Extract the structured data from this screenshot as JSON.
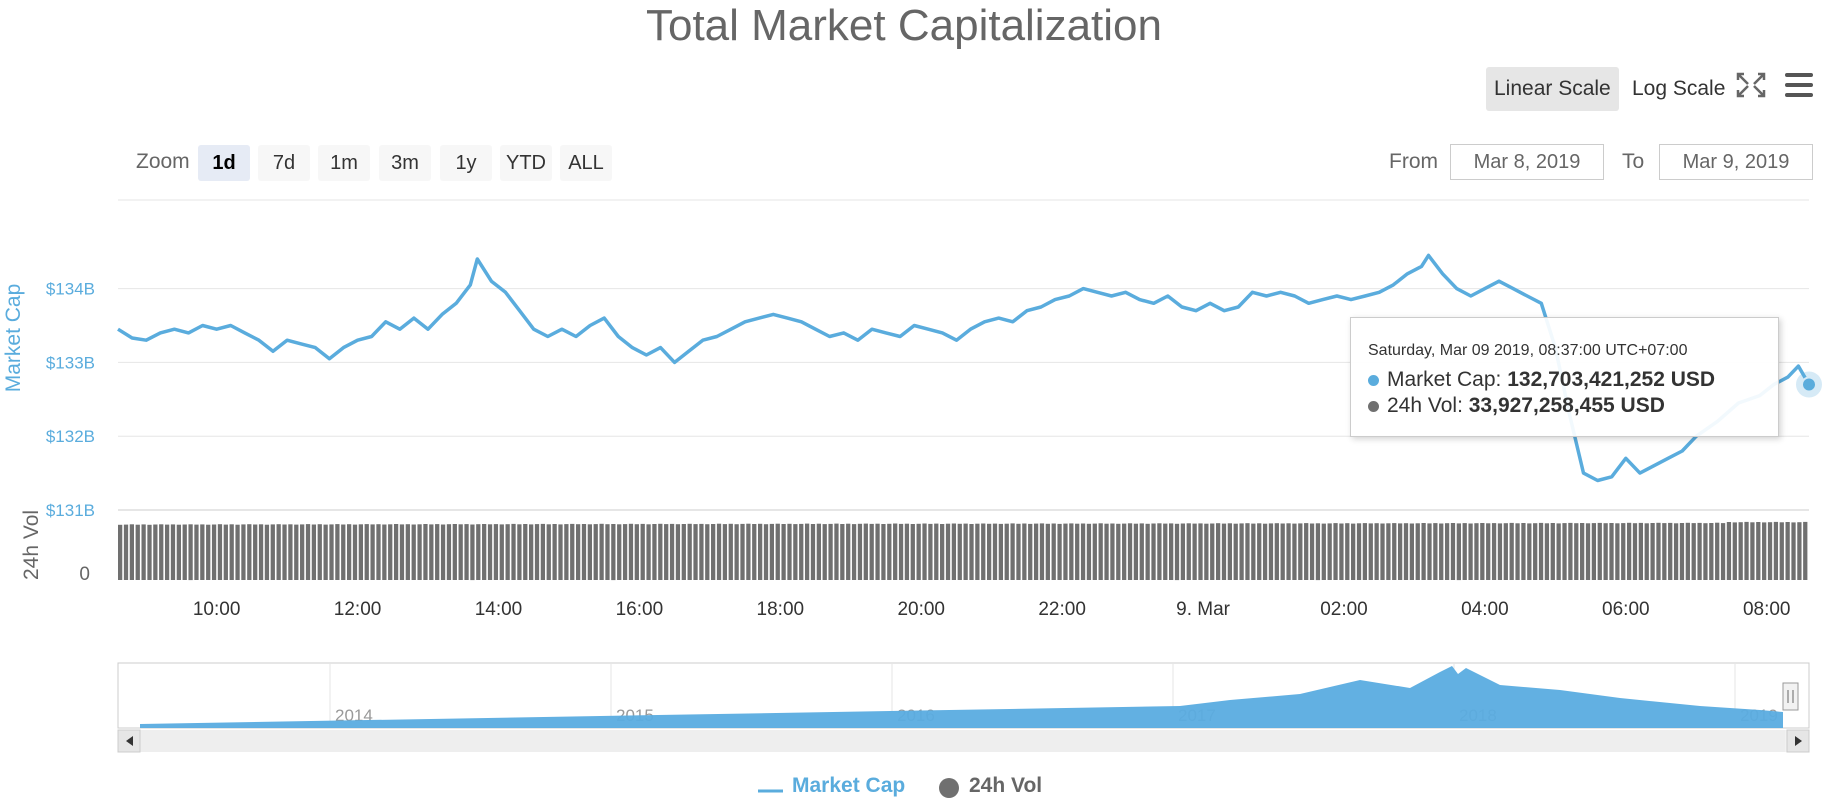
{
  "title": "Total Market Capitalization",
  "scale_buttons": [
    {
      "label": "Linear Scale",
      "selected": true
    },
    {
      "label": "Log Scale",
      "selected": false
    }
  ],
  "toolbar": {
    "fullscreen_icon": "expand-icon",
    "menu_icon": "hamburger-menu-icon"
  },
  "zoom": {
    "label": "Zoom",
    "buttons": [
      {
        "label": "1d",
        "selected": true
      },
      {
        "label": "7d",
        "selected": false
      },
      {
        "label": "1m",
        "selected": false
      },
      {
        "label": "3m",
        "selected": false
      },
      {
        "label": "1y",
        "selected": false
      },
      {
        "label": "YTD",
        "selected": false
      },
      {
        "label": "ALL",
        "selected": false
      }
    ]
  },
  "range": {
    "from_label": "From",
    "from_value": "Mar 8, 2019",
    "to_label": "To",
    "to_value": "Mar 9, 2019"
  },
  "tooltip": {
    "header": "Saturday, Mar 09 2019, 08:37:00 UTC+07:00",
    "market_cap_label": "Market Cap:",
    "market_cap_value": "132,703,421,252 USD",
    "vol_label": "24h Vol:",
    "vol_value": "33,927,258,455 USD"
  },
  "legend": [
    {
      "label": "Market Cap",
      "color": "#5aacdd"
    },
    {
      "label": "24h Vol",
      "color": "#707070"
    }
  ],
  "colors": {
    "market_cap": "#5aacdd",
    "volume": "#707070",
    "navigator_fill": "#5aace0"
  },
  "chart_data": [
    {
      "type": "line",
      "title": "Total Market Capitalization",
      "ylabel": "Market Cap",
      "series_name": "Market Cap",
      "x_ticks": [
        "10:00",
        "12:00",
        "14:00",
        "16:00",
        "18:00",
        "20:00",
        "22:00",
        "9. Mar",
        "02:00",
        "04:00",
        "06:00",
        "08:00"
      ],
      "y_ticks": [
        "$131B",
        "$132B",
        "$133B",
        "$134B"
      ],
      "ylim": [
        131,
        135.2
      ],
      "y_unit": "billion USD",
      "x_hours_range": [
        8.6,
        32.6
      ],
      "points": [
        [
          8.6,
          133.45
        ],
        [
          8.8,
          133.33
        ],
        [
          9.0,
          133.3
        ],
        [
          9.2,
          133.4
        ],
        [
          9.4,
          133.45
        ],
        [
          9.6,
          133.4
        ],
        [
          9.8,
          133.5
        ],
        [
          10.0,
          133.45
        ],
        [
          10.2,
          133.5
        ],
        [
          10.4,
          133.4
        ],
        [
          10.6,
          133.3
        ],
        [
          10.8,
          133.15
        ],
        [
          11.0,
          133.3
        ],
        [
          11.2,
          133.25
        ],
        [
          11.4,
          133.2
        ],
        [
          11.6,
          133.05
        ],
        [
          11.8,
          133.2
        ],
        [
          12.0,
          133.3
        ],
        [
          12.2,
          133.35
        ],
        [
          12.4,
          133.55
        ],
        [
          12.6,
          133.45
        ],
        [
          12.8,
          133.6
        ],
        [
          13.0,
          133.45
        ],
        [
          13.2,
          133.65
        ],
        [
          13.4,
          133.8
        ],
        [
          13.6,
          134.05
        ],
        [
          13.7,
          134.4
        ],
        [
          13.9,
          134.1
        ],
        [
          14.1,
          133.95
        ],
        [
          14.3,
          133.7
        ],
        [
          14.5,
          133.45
        ],
        [
          14.7,
          133.35
        ],
        [
          14.9,
          133.45
        ],
        [
          15.1,
          133.35
        ],
        [
          15.3,
          133.5
        ],
        [
          15.5,
          133.6
        ],
        [
          15.7,
          133.35
        ],
        [
          15.9,
          133.2
        ],
        [
          16.1,
          133.1
        ],
        [
          16.3,
          133.2
        ],
        [
          16.5,
          133.0
        ],
        [
          16.7,
          133.15
        ],
        [
          16.9,
          133.3
        ],
        [
          17.1,
          133.35
        ],
        [
          17.3,
          133.45
        ],
        [
          17.5,
          133.55
        ],
        [
          17.7,
          133.6
        ],
        [
          17.9,
          133.65
        ],
        [
          18.1,
          133.6
        ],
        [
          18.3,
          133.55
        ],
        [
          18.5,
          133.45
        ],
        [
          18.7,
          133.35
        ],
        [
          18.9,
          133.4
        ],
        [
          19.1,
          133.3
        ],
        [
          19.3,
          133.45
        ],
        [
          19.5,
          133.4
        ],
        [
          19.7,
          133.35
        ],
        [
          19.9,
          133.5
        ],
        [
          20.1,
          133.45
        ],
        [
          20.3,
          133.4
        ],
        [
          20.5,
          133.3
        ],
        [
          20.7,
          133.45
        ],
        [
          20.9,
          133.55
        ],
        [
          21.1,
          133.6
        ],
        [
          21.3,
          133.55
        ],
        [
          21.5,
          133.7
        ],
        [
          21.7,
          133.75
        ],
        [
          21.9,
          133.85
        ],
        [
          22.1,
          133.9
        ],
        [
          22.3,
          134.0
        ],
        [
          22.5,
          133.95
        ],
        [
          22.7,
          133.9
        ],
        [
          22.9,
          133.95
        ],
        [
          23.1,
          133.85
        ],
        [
          23.3,
          133.8
        ],
        [
          23.5,
          133.9
        ],
        [
          23.7,
          133.75
        ],
        [
          23.9,
          133.7
        ],
        [
          24.1,
          133.8
        ],
        [
          24.3,
          133.7
        ],
        [
          24.5,
          133.75
        ],
        [
          24.7,
          133.95
        ],
        [
          24.9,
          133.9
        ],
        [
          25.1,
          133.95
        ],
        [
          25.3,
          133.9
        ],
        [
          25.5,
          133.8
        ],
        [
          25.7,
          133.85
        ],
        [
          25.9,
          133.9
        ],
        [
          26.1,
          133.85
        ],
        [
          26.3,
          133.9
        ],
        [
          26.5,
          133.95
        ],
        [
          26.7,
          134.05
        ],
        [
          26.9,
          134.2
        ],
        [
          27.1,
          134.3
        ],
        [
          27.2,
          134.45
        ],
        [
          27.4,
          134.2
        ],
        [
          27.6,
          134.0
        ],
        [
          27.8,
          133.9
        ],
        [
          28.0,
          134.0
        ],
        [
          28.2,
          134.1
        ],
        [
          28.4,
          134.0
        ],
        [
          28.6,
          133.9
        ],
        [
          28.8,
          133.8
        ],
        [
          29.0,
          133.2
        ],
        [
          29.2,
          132.3
        ],
        [
          29.4,
          131.5
        ],
        [
          29.6,
          131.4
        ],
        [
          29.8,
          131.45
        ],
        [
          30.0,
          131.7
        ],
        [
          30.2,
          131.5
        ],
        [
          30.4,
          131.6
        ],
        [
          30.6,
          131.7
        ],
        [
          30.8,
          131.8
        ],
        [
          31.0,
          132.0
        ],
        [
          31.3,
          132.2
        ],
        [
          31.6,
          132.45
        ],
        [
          31.9,
          132.55
        ],
        [
          32.1,
          132.7
        ],
        [
          32.3,
          132.8
        ],
        [
          32.45,
          132.95
        ],
        [
          32.6,
          132.7
        ]
      ]
    },
    {
      "type": "bar",
      "ylabel": "24h Vol",
      "series_name": "24h Vol",
      "y_ticks": [
        "0"
      ],
      "note": "one bar per 5 minutes, nearly uniform height",
      "relative_level": [
        0.92,
        0.96
      ]
    },
    {
      "type": "area",
      "role": "navigator",
      "x_ticks": [
        "2014",
        "2015",
        "2016",
        "2017",
        "2018",
        "2019"
      ]
    }
  ]
}
